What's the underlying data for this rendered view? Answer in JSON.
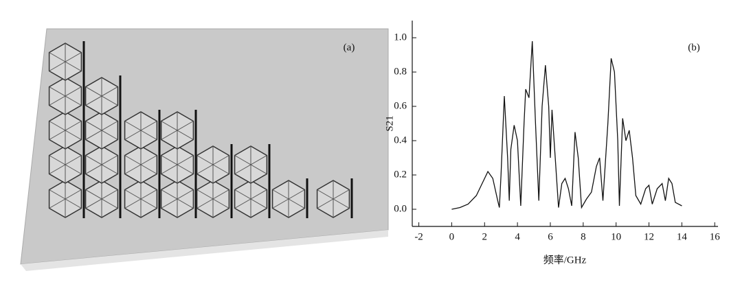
{
  "panel_a": {
    "label": "(a)"
  },
  "chart_data": {
    "type": "line",
    "panel_label": "(b)",
    "xlabel": "频率/GHz",
    "ylabel": "S21",
    "x": [
      0,
      0.5,
      1,
      1.5,
      2,
      2.2,
      2.5,
      2.8,
      2.9,
      3.0,
      3.2,
      3.4,
      3.5,
      3.6,
      3.8,
      4.0,
      4.2,
      4.4,
      4.5,
      4.7,
      4.9,
      5.1,
      5.3,
      5.5,
      5.7,
      5.9,
      6.0,
      6.1,
      6.3,
      6.5,
      6.7,
      6.9,
      7.1,
      7.3,
      7.5,
      7.7,
      7.9,
      8.2,
      8.5,
      8.8,
      9.0,
      9.2,
      9.5,
      9.7,
      9.9,
      10.1,
      10.2,
      10.4,
      10.6,
      10.8,
      11.0,
      11.2,
      11.5,
      11.8,
      12.0,
      12.2,
      12.5,
      12.8,
      13.0,
      13.2,
      13.4,
      13.6,
      14.0
    ],
    "series": [
      {
        "color": "#111111",
        "values": [
          0,
          0.01,
          0.03,
          0.08,
          0.18,
          0.22,
          0.18,
          0.05,
          0.01,
          0.2,
          0.66,
          0.3,
          0.05,
          0.35,
          0.49,
          0.4,
          0.02,
          0.5,
          0.7,
          0.65,
          0.98,
          0.5,
          0.05,
          0.6,
          0.84,
          0.6,
          0.3,
          0.58,
          0.3,
          0.01,
          0.15,
          0.18,
          0.12,
          0.02,
          0.45,
          0.3,
          0.01,
          0.06,
          0.1,
          0.25,
          0.3,
          0.05,
          0.5,
          0.88,
          0.8,
          0.4,
          0.02,
          0.53,
          0.4,
          0.46,
          0.3,
          0.08,
          0.03,
          0.12,
          0.14,
          0.03,
          0.12,
          0.15,
          0.05,
          0.18,
          0.15,
          0.04,
          0.02
        ]
      }
    ],
    "xlim": [
      -2.4,
      16.2
    ],
    "xticks": [
      -2,
      0,
      2,
      4,
      6,
      8,
      10,
      12,
      14,
      16
    ],
    "ylim": [
      -0.1,
      1.1
    ],
    "yticks": [
      {
        "value": 0,
        "label": "0.0"
      },
      {
        "value": 0.2,
        "label": "0.2"
      },
      {
        "value": 0.4,
        "label": "0.4"
      },
      {
        "value": 0.6,
        "label": "0.6"
      },
      {
        "value": 0.8,
        "label": "0.8"
      },
      {
        "value": 1.0,
        "label": "1.0"
      }
    ]
  }
}
